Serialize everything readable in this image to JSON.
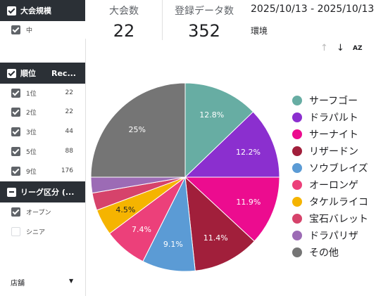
{
  "sidebar": {
    "size_header": {
      "label": "大会規模"
    },
    "size_items": [
      {
        "label": "中"
      }
    ],
    "rank_header": {
      "label": "順位",
      "col2": "Rec..."
    },
    "rank_items": [
      {
        "label": "1位",
        "value": "22"
      },
      {
        "label": "2位",
        "value": "22"
      },
      {
        "label": "3位",
        "value": "44"
      },
      {
        "label": "5位",
        "value": "88"
      },
      {
        "label": "9位",
        "value": "176"
      }
    ],
    "league_header": {
      "label": "リーグ区分 (..."
    },
    "league_items": [
      {
        "label": "オープン",
        "checked": true
      },
      {
        "label": "シニア",
        "checked": false
      }
    ],
    "store": {
      "label": "店舗"
    }
  },
  "metrics": {
    "tournaments": {
      "label": "大会数",
      "value": "22"
    },
    "records": {
      "label": "登録データ数",
      "value": "352"
    }
  },
  "date_range": "2025/10/13 - 2025/10/13",
  "env_label": "環境",
  "toolbar": {
    "sort_az": "AZ"
  },
  "chart_data": {
    "type": "pie",
    "slices": [
      {
        "name": "サーフゴー",
        "value": 12.8,
        "label": "12.8%",
        "color": "#67ada3"
      },
      {
        "name": "ドラパルト",
        "value": 12.2,
        "label": "12.2%",
        "color": "#8b2fcf"
      },
      {
        "name": "サーナイト",
        "value": 11.9,
        "label": "11.9%",
        "color": "#ec0c8f"
      },
      {
        "name": "リザードン",
        "value": 11.4,
        "label": "11.4%",
        "color": "#a11f3b"
      },
      {
        "name": "ソウブレイズ",
        "value": 9.1,
        "label": "9.1%",
        "color": "#5b9bd5"
      },
      {
        "name": "オーロンゲ",
        "value": 7.4,
        "label": "7.4%",
        "color": "#ec407a"
      },
      {
        "name": "タケルライコ",
        "value": 4.5,
        "label": "4.5%",
        "color": "#f5b400"
      },
      {
        "name": "宝石バレット",
        "value": 3.0,
        "label": "",
        "color": "#d6436b"
      },
      {
        "name": "ドラパリザ",
        "value": 2.7,
        "label": "",
        "color": "#9c6bb5"
      },
      {
        "name": "その他",
        "value": 25.0,
        "label": "25%",
        "color": "#757575"
      }
    ]
  }
}
